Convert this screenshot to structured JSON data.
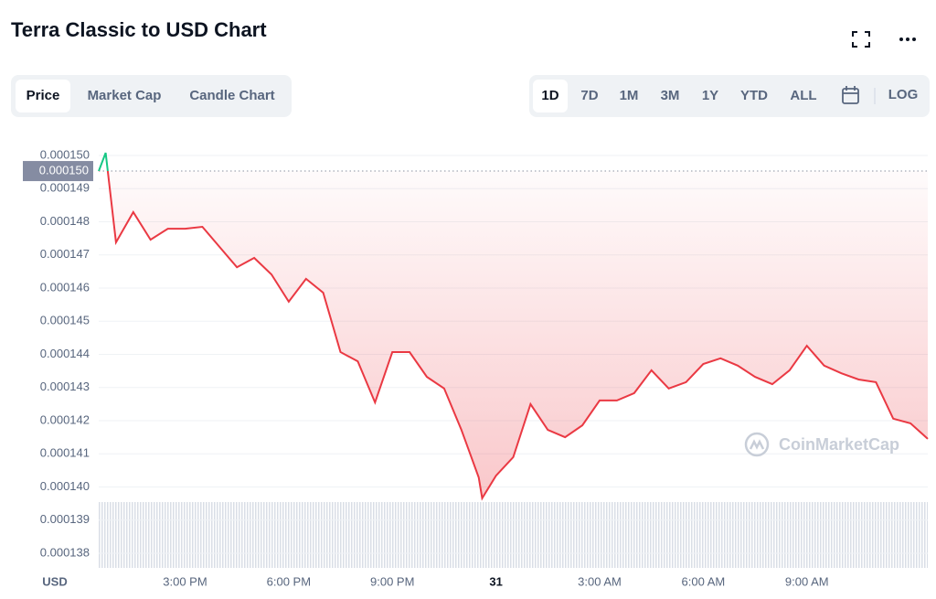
{
  "chart_data": {
    "type": "line",
    "title": "Terra Classic to USD Chart",
    "tabs": [
      "Price",
      "Market Cap",
      "Candle Chart"
    ],
    "active_tab": 0,
    "ranges": [
      "1D",
      "7D",
      "1M",
      "3M",
      "1Y",
      "YTD",
      "ALL"
    ],
    "active_range": 0,
    "log_button": "LOG",
    "currency": "USD",
    "watermark": "CoinMarketCap",
    "up_color": "#16c784",
    "down_color": "#ea3943",
    "reference_line": {
      "value": 0.00014953,
      "label": "0.000150"
    },
    "x": [
      12.5,
      12.7,
      13,
      13.5,
      14,
      14.5,
      15,
      15.5,
      16,
      16.5,
      17,
      17.5,
      18,
      18.5,
      19,
      19.5,
      20,
      20.5,
      21,
      21.5,
      22,
      22.5,
      23,
      23.5,
      23.6,
      24,
      24.5,
      25,
      25.5,
      26,
      26.5,
      27,
      27.5,
      28,
      28.5,
      29,
      29.5,
      30,
      30.5,
      31,
      31.5,
      32,
      32.5,
      33,
      33.5,
      34,
      34.5,
      35,
      35.5,
      36,
      36.5
    ],
    "values": [
      0.00014953,
      0.00015008,
      0.00014738,
      0.00014829,
      0.00014746,
      0.00014779,
      0.00014779,
      0.00014785,
      0.00014724,
      0.00014663,
      0.00014691,
      0.00014641,
      0.00014559,
      0.00014628,
      0.00014586,
      0.00014407,
      0.00014379,
      0.00014255,
      0.00014407,
      0.00014407,
      0.00014332,
      0.00014297,
      0.00014172,
      0.00014029,
      0.00013966,
      0.00014034,
      0.0001409,
      0.0001425,
      0.00014172,
      0.0001415,
      0.00014186,
      0.00014261,
      0.00014261,
      0.00014283,
      0.00014352,
      0.00014297,
      0.00014316,
      0.00014371,
      0.00014388,
      0.00014366,
      0.00014332,
      0.0001431,
      0.00014352,
      0.00014426,
      0.00014366,
      0.00014343,
      0.00014324,
      0.00014316,
      0.00014206,
      0.00014192,
      0.00014145
    ],
    "xlim": [
      12.5,
      36.5
    ],
    "xticks": [
      {
        "value": 15,
        "label": "3:00 PM"
      },
      {
        "value": 18,
        "label": "6:00 PM"
      },
      {
        "value": 21,
        "label": "9:00 PM"
      },
      {
        "value": 24,
        "label": "31"
      },
      {
        "value": 27,
        "label": "3:00 AM"
      },
      {
        "value": 30,
        "label": "6:00 AM"
      },
      {
        "value": 33,
        "label": "9:00 AM"
      }
    ],
    "ylim": [
      0.0001375,
      0.0001505
    ],
    "yticks": [
      {
        "value": 0.00015,
        "label": "0.000150"
      },
      {
        "value": 0.000149,
        "label": "0.000149"
      },
      {
        "value": 0.000148,
        "label": "0.000148"
      },
      {
        "value": 0.000147,
        "label": "0.000147"
      },
      {
        "value": 0.000146,
        "label": "0.000146"
      },
      {
        "value": 0.000145,
        "label": "0.000145"
      },
      {
        "value": 0.000144,
        "label": "0.000144"
      },
      {
        "value": 0.000143,
        "label": "0.000143"
      },
      {
        "value": 0.000142,
        "label": "0.000142"
      },
      {
        "value": 0.000141,
        "label": "0.000141"
      },
      {
        "value": 0.00014,
        "label": "0.000140"
      },
      {
        "value": 0.000139,
        "label": "0.000139"
      },
      {
        "value": 0.000138,
        "label": "0.000138"
      }
    ],
    "grid": true
  }
}
